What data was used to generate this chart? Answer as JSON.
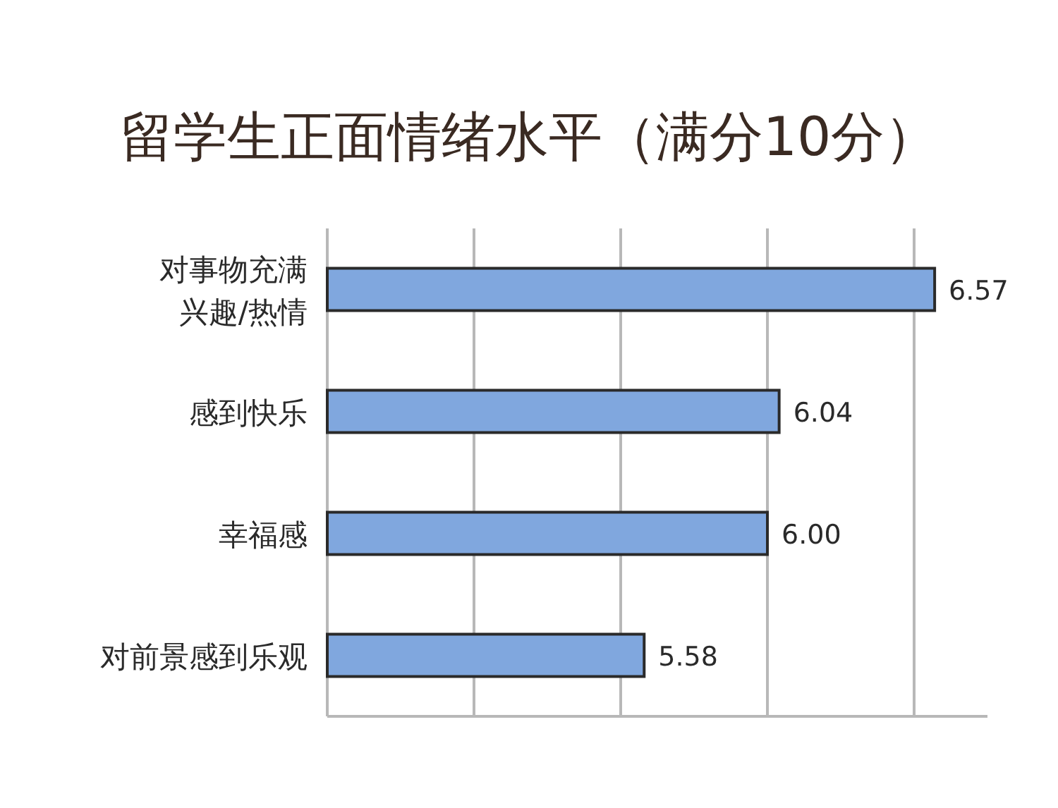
{
  "chart_data": {
    "type": "bar",
    "orientation": "horizontal",
    "title": "留学生正面情绪水平（满分10分）",
    "categories": [
      "对事物充满兴趣/热情",
      "感到快乐",
      "幸福感",
      "对前景感到乐观"
    ],
    "values": [
      6.57,
      6.04,
      6.0,
      5.58
    ],
    "value_labels": [
      "6.57",
      "6.04",
      "6.00",
      "5.58"
    ],
    "color": "#80a7de",
    "xlim": [
      4.5,
      6.75
    ],
    "xticks": [
      {
        "value": 4.5,
        "label": null
      },
      {
        "value": 5.0,
        "label": null
      },
      {
        "value": 5.5,
        "label": null
      },
      {
        "value": 6.0,
        "label": null
      },
      {
        "value": 6.5,
        "label": null
      }
    ],
    "grid": "x"
  }
}
